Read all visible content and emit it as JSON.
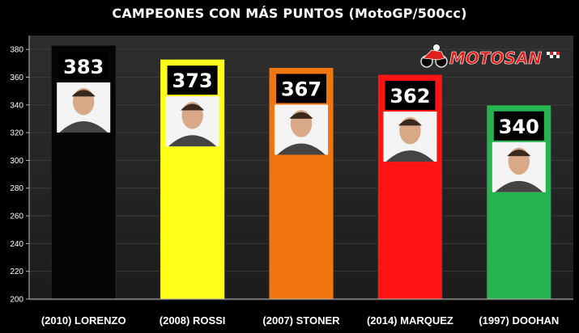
{
  "title": "CAMPEONES CON MÁS PUNTOS (MotoGP/500cc)",
  "logo": {
    "text": "MOTOSAN",
    "icon": "motorcycle-rider-icon",
    "color": "#e0201b"
  },
  "chart_data": {
    "type": "bar",
    "title": "CAMPEONES CON MÁS PUNTOS (MotoGP/500cc)",
    "categories": [
      "(2010) LORENZO",
      "(2008) ROSSI",
      "(2007) STONER",
      "(2014) MARQUEZ",
      "(1997) DOOHAN"
    ],
    "values": [
      383,
      373,
      367,
      362,
      340
    ],
    "colors": [
      "#050505",
      "#ffff1a",
      "#f2760f",
      "#ff1414",
      "#27b34f"
    ],
    "portraits": [
      "lorenzo-portrait",
      "rossi-portrait",
      "stoner-portrait",
      "marquez-portrait",
      "doohan-portrait"
    ],
    "ylim": [
      200,
      390
    ],
    "yticks": [
      200,
      220,
      240,
      260,
      280,
      300,
      320,
      340,
      360,
      380
    ],
    "grid": true,
    "data_labels": true,
    "xlabel": "",
    "ylabel": ""
  }
}
